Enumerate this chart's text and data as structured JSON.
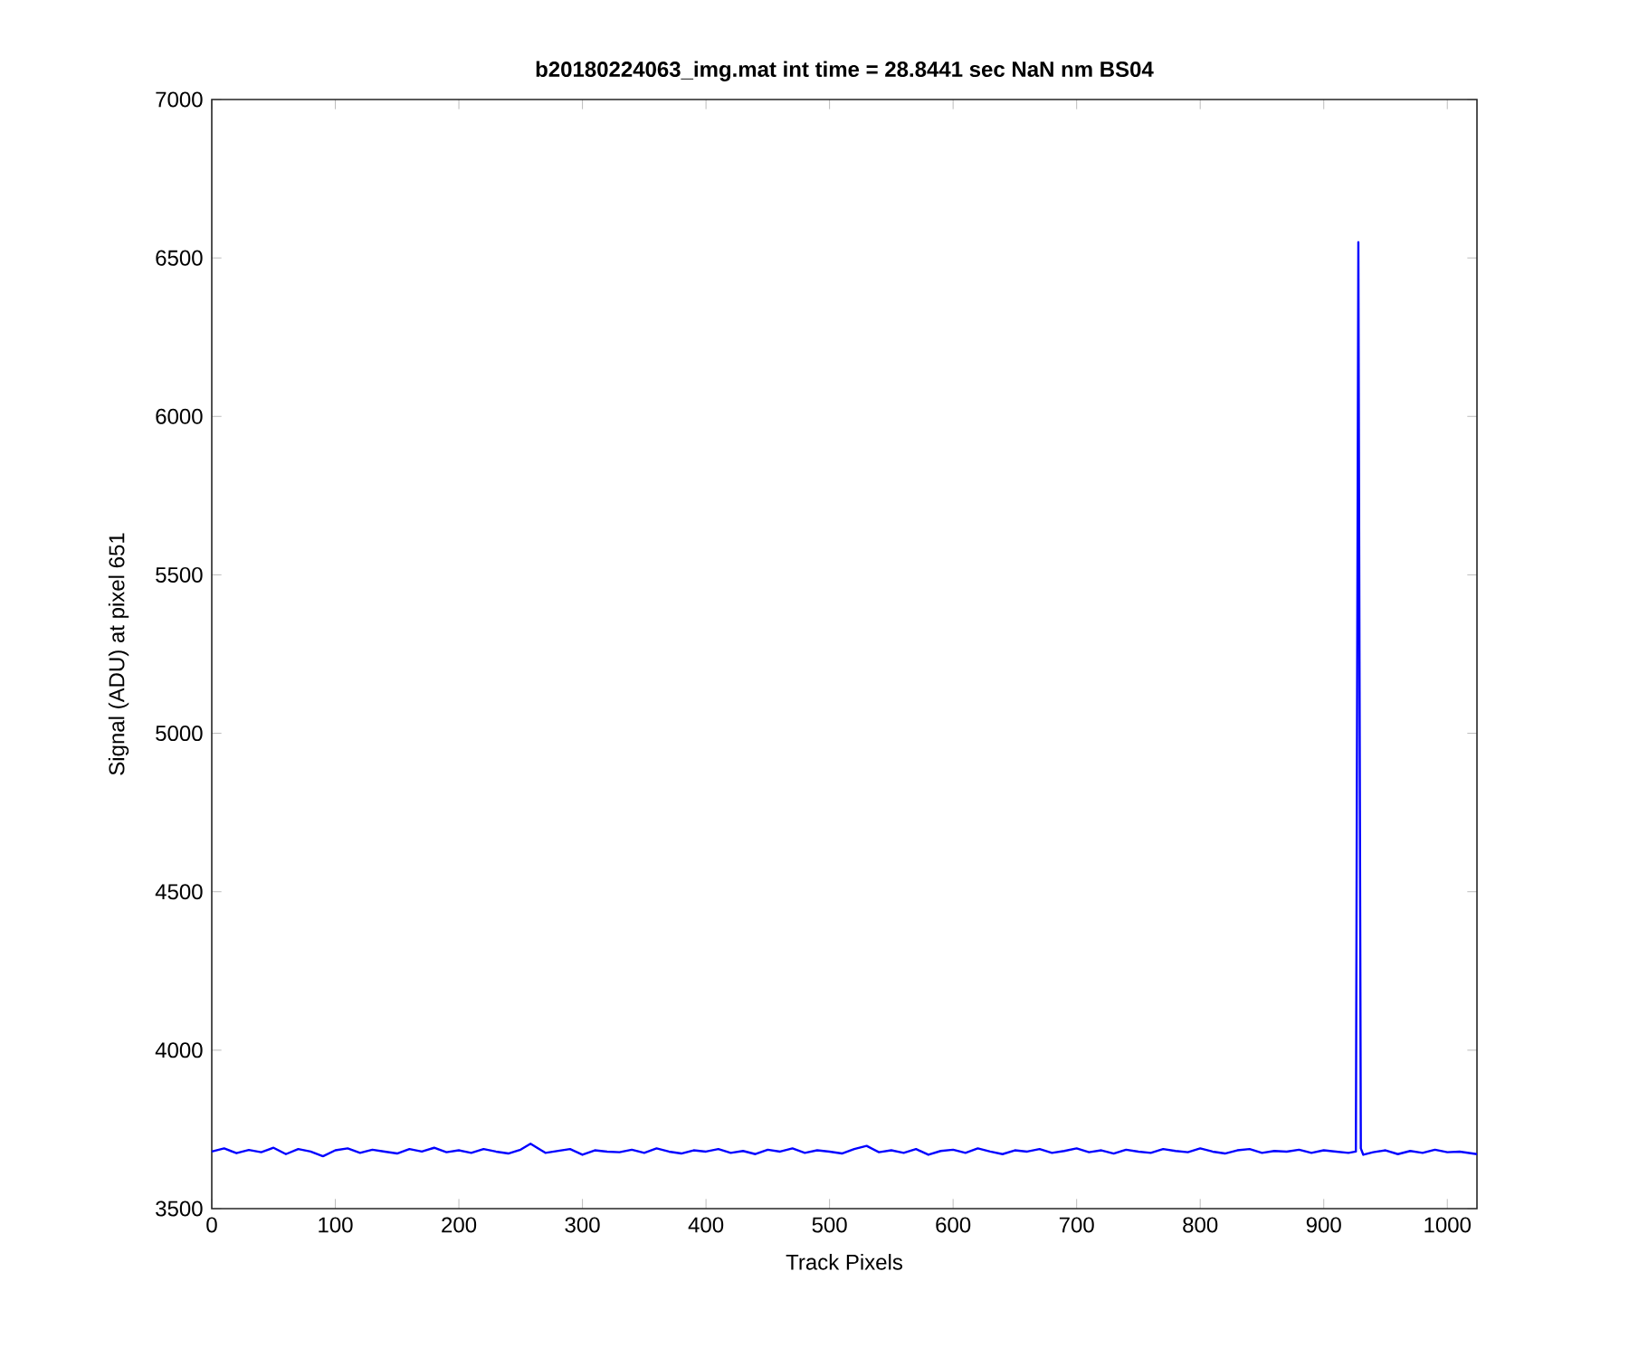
{
  "chart_data": {
    "type": "line",
    "title": "b20180224063_img.mat int time = 28.8441 sec  NaN nm BS04",
    "xlabel": "Track Pixels",
    "ylabel": "Signal (ADU) at pixel 651",
    "xlim": [
      0,
      1024
    ],
    "ylim": [
      3500,
      7000
    ],
    "xticks": [
      0,
      100,
      200,
      300,
      400,
      500,
      600,
      700,
      800,
      900,
      1000
    ],
    "yticks": [
      3500,
      4000,
      4500,
      5000,
      5500,
      6000,
      6500,
      7000
    ],
    "x": [
      0,
      10,
      20,
      30,
      40,
      50,
      60,
      70,
      80,
      90,
      100,
      110,
      120,
      130,
      140,
      150,
      160,
      170,
      180,
      190,
      200,
      210,
      220,
      230,
      240,
      250,
      258,
      270,
      280,
      290,
      300,
      310,
      320,
      330,
      340,
      350,
      360,
      370,
      380,
      390,
      400,
      410,
      420,
      430,
      440,
      450,
      460,
      470,
      480,
      490,
      500,
      510,
      520,
      530,
      540,
      550,
      560,
      570,
      580,
      590,
      600,
      610,
      620,
      630,
      640,
      650,
      660,
      670,
      680,
      690,
      700,
      710,
      720,
      730,
      740,
      750,
      760,
      770,
      780,
      790,
      800,
      810,
      820,
      830,
      840,
      850,
      860,
      870,
      880,
      890,
      900,
      910,
      920,
      926,
      928,
      930,
      932,
      940,
      950,
      960,
      970,
      980,
      990,
      1000,
      1010,
      1024
    ],
    "series": [
      {
        "color": "#0000ff",
        "values": [
          3680,
          3690,
          3675,
          3685,
          3678,
          3692,
          3672,
          3688,
          3680,
          3665,
          3684,
          3690,
          3676,
          3686,
          3680,
          3674,
          3688,
          3680,
          3692,
          3678,
          3684,
          3676,
          3688,
          3680,
          3674,
          3686,
          3705,
          3676,
          3682,
          3688,
          3670,
          3684,
          3680,
          3678,
          3686,
          3676,
          3690,
          3680,
          3674,
          3684,
          3680,
          3688,
          3676,
          3682,
          3672,
          3686,
          3680,
          3690,
          3676,
          3684,
          3680,
          3674,
          3688,
          3698,
          3678,
          3684,
          3676,
          3688,
          3670,
          3682,
          3686,
          3676,
          3690,
          3680,
          3672,
          3684,
          3680,
          3688,
          3676,
          3682,
          3690,
          3678,
          3684,
          3674,
          3686,
          3680,
          3676,
          3688,
          3682,
          3678,
          3690,
          3680,
          3674,
          3684,
          3688,
          3676,
          3682,
          3680,
          3686,
          3676,
          3684,
          3680,
          3676,
          3680,
          6550,
          3690,
          3670,
          3678,
          3684,
          3672,
          3682,
          3676,
          3686,
          3678,
          3680,
          3672
        ]
      }
    ],
    "grid": false,
    "marker": "none",
    "line_style": "solid"
  }
}
